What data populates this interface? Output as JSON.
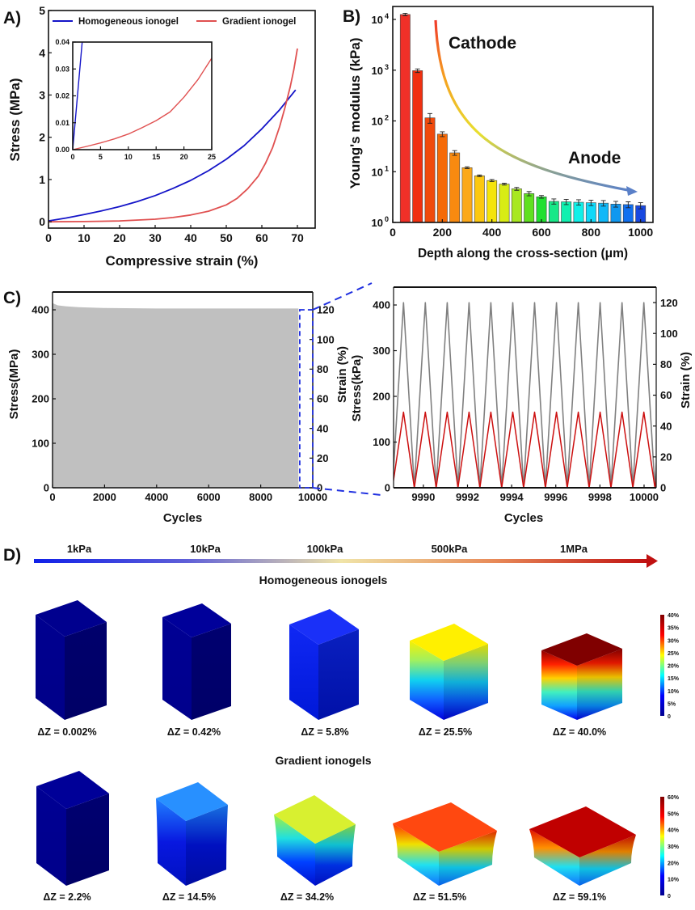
{
  "panel_labels": {
    "a": "A)",
    "b": "B)",
    "c": "C)",
    "d": "D)"
  },
  "chart_data": [
    {
      "panel": "A",
      "type": "line",
      "title": "",
      "xlabel": "Compressive strain (%)",
      "ylabel": "Stress (MPa)",
      "xlim": [
        0,
        75
      ],
      "ylim": [
        -0.15,
        5
      ],
      "xticks": [
        "0",
        "10",
        "20",
        "30",
        "40",
        "50",
        "60",
        "70"
      ],
      "yticks": [
        "0",
        "1",
        "2",
        "3",
        "4",
        "5"
      ],
      "legend_position": "top",
      "series": [
        {
          "name": "Homogeneous ionogel",
          "color": "#1414c8",
          "x": [
            0,
            5,
            10,
            15,
            20,
            25,
            30,
            35,
            40,
            45,
            50,
            55,
            60,
            65,
            69.5
          ],
          "y": [
            0.02,
            0.09,
            0.17,
            0.26,
            0.36,
            0.48,
            0.62,
            0.79,
            0.98,
            1.21,
            1.48,
            1.8,
            2.2,
            2.65,
            3.12
          ]
        },
        {
          "name": "Gradient ionogel",
          "color": "#e05050",
          "x": [
            0,
            10,
            20,
            30,
            35,
            40,
            45,
            50,
            53,
            56,
            59,
            61,
            63,
            65,
            66.5,
            68,
            69,
            70
          ],
          "y": [
            0,
            0.005,
            0.02,
            0.06,
            0.1,
            0.16,
            0.25,
            0.4,
            0.55,
            0.78,
            1.08,
            1.38,
            1.75,
            2.25,
            2.7,
            3.2,
            3.6,
            4.1
          ]
        }
      ],
      "inset": {
        "xlim": [
          0,
          25
        ],
        "ylim": [
          0,
          0.04
        ],
        "xticks": [
          "0",
          "5",
          "10",
          "15",
          "20",
          "25"
        ],
        "yticks": [
          "0.00",
          "0.01",
          "0.02",
          "0.03",
          "0.04"
        ],
        "series": [
          {
            "name": "Homogeneous ionogel",
            "color": "#1414c8",
            "x": [
              0,
              1.7
            ],
            "y": [
              0,
              0.04
            ]
          },
          {
            "name": "Gradient ionogel",
            "color": "#e05050",
            "x": [
              0,
              2.5,
              5,
              7.5,
              10,
              12.5,
              15,
              17.5,
              20,
              22.5,
              25
            ],
            "y": [
              0,
              0.0012,
              0.0025,
              0.004,
              0.0058,
              0.0082,
              0.0108,
              0.014,
              0.0195,
              0.026,
              0.034
            ]
          }
        ]
      }
    },
    {
      "panel": "B",
      "type": "bar",
      "xlabel": "Depth along the cross-section (μm)",
      "ylabel": "Young's modulus (kPa)",
      "yscale": "log",
      "xlim": [
        0,
        1050
      ],
      "ylim": [
        1,
        18000
      ],
      "xticks": [
        "0",
        "200",
        "400",
        "600",
        "800",
        "1000"
      ],
      "ytick_base": "10",
      "ytick_exponents": [
        "0",
        "1",
        "2",
        "3",
        "4"
      ],
      "categories": [
        50,
        100,
        150,
        200,
        250,
        300,
        350,
        400,
        450,
        500,
        550,
        600,
        650,
        700,
        750,
        800,
        850,
        900,
        950,
        1000
      ],
      "values": [
        12500,
        980,
        115,
        55,
        23.5,
        12,
        8.3,
        6.7,
        5.7,
        4.6,
        3.7,
        3.2,
        2.6,
        2.55,
        2.5,
        2.45,
        2.4,
        2.3,
        2.25,
        2.15
      ],
      "errors": [
        700,
        80,
        25,
        6,
        2.5,
        0.5,
        0.3,
        0.3,
        0.25,
        0.3,
        0.35,
        0.2,
        0.3,
        0.3,
        0.3,
        0.3,
        0.3,
        0.3,
        0.3,
        0.3
      ],
      "colors": [
        "#f03028",
        "#f03010",
        "#f04a0c",
        "#f56a08",
        "#f88a10",
        "#fba818",
        "#fcc810",
        "#f5e40a",
        "#d8ec14",
        "#a8e820",
        "#60e020",
        "#20e030",
        "#18e888",
        "#10f0b0",
        "#10f0e8",
        "#10d8f8",
        "#10b8f8",
        "#1098f0",
        "#1070f0",
        "#1848e0"
      ],
      "annotations": {
        "cathode": "Cathode",
        "anode": "Anode",
        "cathode_color": "#e83a2a",
        "anode_color": "#2a5ae0"
      }
    },
    {
      "panel": "C-left",
      "type": "area",
      "xlabel": "Cycles",
      "ylabel": "Stress(MPa)",
      "y2label": "Strain (%)",
      "xlim": [
        0,
        10000
      ],
      "ylim": [
        0,
        440
      ],
      "y2lim": [
        0,
        120
      ],
      "xticks": [
        "0",
        "2000",
        "4000",
        "6000",
        "8000",
        "10000"
      ],
      "yticks": [
        "0",
        "100",
        "200",
        "300",
        "400"
      ],
      "y2ticks": [
        "0",
        "20",
        "40",
        "60",
        "80",
        "100",
        "120"
      ],
      "fill_color": "#c0c0c0",
      "envelope": {
        "x": [
          0,
          200,
          500,
          1000,
          2000,
          4000,
          6000,
          8000,
          9450
        ],
        "y": [
          415,
          410,
          408,
          406,
          404,
          403,
          403,
          403,
          403
        ]
      },
      "zoom_window": {
        "x": [
          9500,
          10000
        ],
        "y2": [
          0,
          120
        ],
        "color": "#2030e0"
      }
    },
    {
      "panel": "C-right",
      "type": "line",
      "xlabel": "Cycles",
      "ylabel": "Stress(kPa)",
      "y2label": "Strain (%)",
      "xlim": [
        9988.65,
        10000.55
      ],
      "ylim": [
        0,
        439
      ],
      "y2lim": [
        0,
        130
      ],
      "xticks": [
        "9990",
        "9992",
        "9994",
        "9996",
        "9998",
        "10000"
      ],
      "yticks": [
        "0",
        "100",
        "200",
        "300",
        "400"
      ],
      "y2ticks": [
        "0",
        "20",
        "40",
        "60",
        "80",
        "100",
        "120"
      ],
      "peak_cycles": [
        9989.1,
        9990.09,
        9991.08,
        9992.07,
        9993.06,
        9994.05,
        9995.04,
        9996.03,
        9997.02,
        9998.01,
        9999.0,
        9999.99
      ],
      "series": [
        {
          "name": "Stress",
          "color": "#808080",
          "peak": 405,
          "min": 0
        },
        {
          "name": "Strain",
          "color": "#cc1010",
          "peak": 49,
          "min": 0
        }
      ]
    }
  ],
  "panel_d": {
    "scale_labels": [
      "1kPa",
      "10kPa",
      "100kPa",
      "500kPa",
      "1MPa"
    ],
    "rows": [
      {
        "title": "Homogeneous ionogels",
        "colorbar_ticks": [
          "40%",
          "35%",
          "30%",
          "25%",
          "20%",
          "15%",
          "10%",
          "5%",
          "0"
        ],
        "blocks": [
          {
            "label": "ΔZ = 0.002%",
            "top": "#00008e",
            "left": [
              "#000090",
              "#000088"
            ],
            "right": [
              "#00006c",
              "#000066"
            ]
          },
          {
            "label": "ΔZ = 0.42%",
            "top": "#00009a",
            "left": [
              "#000094",
              "#00008c"
            ],
            "right": [
              "#000070",
              "#000068"
            ]
          },
          {
            "label": "ΔZ = 5.8%",
            "top": "#1a30f8",
            "left": [
              "#1028f4",
              "#0018d8"
            ],
            "right": [
              "#0a20c0",
              "#0010a8"
            ]
          },
          {
            "label": "ΔZ = 25.5%",
            "top": "#fff000",
            "left": [
              "#f8f000",
              "#a0f060",
              "#10d0f0",
              "#1060ff",
              "#0000e0"
            ],
            "right": [
              "#e0d800",
              "#80d070",
              "#10b0d8",
              "#0850e0",
              "#0000c0"
            ]
          },
          {
            "label": "ΔZ = 40.0%",
            "top": "#800000",
            "left": [
              "#900000",
              "#ff2000",
              "#ffd000",
              "#40f0c0",
              "#10a0ff",
              "#0000f0"
            ],
            "right": [
              "#800000",
              "#e01800",
              "#e8c000",
              "#30d0b0",
              "#0880e0",
              "#0000d0"
            ]
          }
        ]
      },
      {
        "title": "Gradient ionogels",
        "colorbar_ticks": [
          "60%",
          "50%",
          "40%",
          "30%",
          "20%",
          "10%",
          "0"
        ],
        "blocks": [
          {
            "label": "ΔZ = 2.2%",
            "top": "#000098",
            "left": [
              "#000094",
              "#00008a"
            ],
            "right": [
              "#000070",
              "#000066"
            ]
          },
          {
            "label": "ΔZ = 14.5%",
            "top": "#2890ff",
            "left": [
              "#2080ff",
              "#0818e0",
              "#0010c0"
            ],
            "right": [
              "#1870e0",
              "#0010c0",
              "#000ca0"
            ]
          },
          {
            "label": "ΔZ = 34.2%",
            "top": "#d8f030",
            "left": [
              "#a0f040",
              "#20e0e0",
              "#0040ff",
              "#0010d0"
            ],
            "right": [
              "#80d040",
              "#10c0d0",
              "#0030e0",
              "#0010c0"
            ]
          },
          {
            "label": "ΔZ = 51.5%",
            "top": "#ff4810",
            "left": [
              "#ff3000",
              "#f0e000",
              "#20e0f0",
              "#1070ff"
            ],
            "right": [
              "#e02800",
              "#d0c800",
              "#10c0e0",
              "#0860e8"
            ]
          },
          {
            "label": "ΔZ = 59.1%",
            "top": "#c00000",
            "left": [
              "#e01000",
              "#ff9000",
              "#20e0f0",
              "#1070ff"
            ],
            "right": [
              "#c00c00",
              "#e08000",
              "#10c0e0",
              "#0860e8"
            ]
          }
        ]
      }
    ],
    "gradient_colors": [
      "#1020e8",
      "#6060d8",
      "#f0e4a8",
      "#e88a58",
      "#c01010"
    ],
    "jet_colors": [
      "#800000",
      "#ff0000",
      "#ffff00",
      "#00ffff",
      "#0000ff",
      "#00008f"
    ]
  }
}
